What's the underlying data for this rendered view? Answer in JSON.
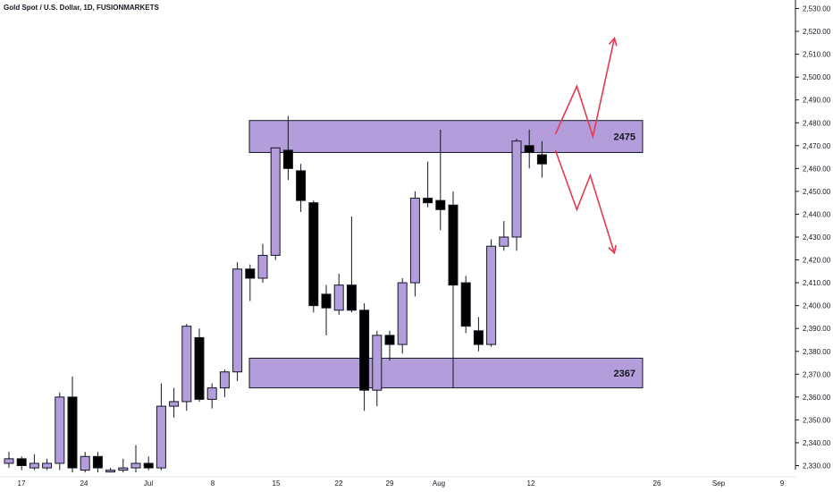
{
  "chart_data": {
    "type": "candlestick",
    "title": "Gold Spot / U.S. Dollar, 1D, FUSIONMARKETS",
    "y_range": [
      2327,
      2531
    ],
    "y_ticks": [
      "2,330.00",
      "2,340.00",
      "2,350.00",
      "2,360.00",
      "2,370.00",
      "2,380.00",
      "2,390.00",
      "2,400.00",
      "2,410.00",
      "2,420.00",
      "2,430.00",
      "2,440.00",
      "2,450.00",
      "2,460.00",
      "2,470.00",
      "2,480.00",
      "2,490.00",
      "2,500.00",
      "2,510.00",
      "2,520.00",
      "2,530.00"
    ],
    "x_ticks": [
      "17",
      "24",
      "Jul",
      "8",
      "15",
      "22",
      "29",
      "Aug",
      "12",
      "26",
      "Sep",
      "9"
    ],
    "colors": {
      "bull": "#b39ddb",
      "bear": "#000000",
      "zone": "#b39ddb",
      "arrow": "#e8384f"
    },
    "candles": [
      {
        "d": "Jun 17",
        "o": 2331,
        "h": 2336,
        "l": 2329,
        "c": 2333
      },
      {
        "d": "Jun 18",
        "o": 2333,
        "h": 2334,
        "l": 2328,
        "c": 2330
      },
      {
        "d": "Jun 19",
        "o": 2329,
        "h": 2335,
        "l": 2328,
        "c": 2331
      },
      {
        "d": "Jun 20",
        "o": 2329,
        "h": 2333,
        "l": 2328,
        "c": 2331
      },
      {
        "d": "Jun 21",
        "o": 2331,
        "h": 2362,
        "l": 2328,
        "c": 2360
      },
      {
        "d": "Jun 24",
        "o": 2360,
        "h": 2369,
        "l": 2327,
        "c": 2329
      },
      {
        "d": "Jun 25",
        "o": 2328,
        "h": 2336,
        "l": 2327,
        "c": 2334
      },
      {
        "d": "Jun 26",
        "o": 2334,
        "h": 2336,
        "l": 2327,
        "c": 2329
      },
      {
        "d": "Jun 27",
        "o": 2328,
        "h": 2329,
        "l": 2327,
        "c": 2328
      },
      {
        "d": "Jun 28",
        "o": 2328,
        "h": 2333,
        "l": 2327,
        "c": 2329
      },
      {
        "d": "Jul 1",
        "o": 2329,
        "h": 2339,
        "l": 2327,
        "c": 2331
      },
      {
        "d": "Jul 2",
        "o": 2331,
        "h": 2334,
        "l": 2328,
        "c": 2329
      },
      {
        "d": "Jul 3",
        "o": 2329,
        "h": 2366,
        "l": 2328,
        "c": 2356
      },
      {
        "d": "Jul 4",
        "o": 2356,
        "h": 2364,
        "l": 2351,
        "c": 2358
      },
      {
        "d": "Jul 5",
        "o": 2358,
        "h": 2392,
        "l": 2354,
        "c": 2391
      },
      {
        "d": "Jul 8",
        "o": 2386,
        "h": 2390,
        "l": 2358,
        "c": 2359
      },
      {
        "d": "Jul 9",
        "o": 2359,
        "h": 2366,
        "l": 2355,
        "c": 2364
      },
      {
        "d": "Jul 10",
        "o": 2364,
        "h": 2372,
        "l": 2360,
        "c": 2371
      },
      {
        "d": "Jul 11",
        "o": 2371,
        "h": 2419,
        "l": 2367,
        "c": 2416
      },
      {
        "d": "Jul 12",
        "o": 2416,
        "h": 2418,
        "l": 2402,
        "c": 2412
      },
      {
        "d": "Jul 15",
        "o": 2412,
        "h": 2427,
        "l": 2410,
        "c": 2422
      },
      {
        "d": "Jul 16",
        "o": 2422,
        "h": 2469,
        "l": 2420,
        "c": 2469
      },
      {
        "d": "Jul 17",
        "o": 2468,
        "h": 2483,
        "l": 2455,
        "c": 2460
      },
      {
        "d": "Jul 18",
        "o": 2459,
        "h": 2462,
        "l": 2441,
        "c": 2446
      },
      {
        "d": "Jul 19",
        "o": 2445,
        "h": 2446,
        "l": 2397,
        "c": 2400
      },
      {
        "d": "Jul 22",
        "o": 2405,
        "h": 2409,
        "l": 2387,
        "c": 2399
      },
      {
        "d": "Jul 23",
        "o": 2398,
        "h": 2414,
        "l": 2396,
        "c": 2409
      },
      {
        "d": "Jul 24",
        "o": 2409,
        "h": 2439,
        "l": 2397,
        "c": 2398
      },
      {
        "d": "Jul 25",
        "o": 2398,
        "h": 2401,
        "l": 2354,
        "c": 2363
      },
      {
        "d": "Jul 26",
        "o": 2363,
        "h": 2389,
        "l": 2356,
        "c": 2387
      },
      {
        "d": "Jul 29",
        "o": 2387,
        "h": 2389,
        "l": 2376,
        "c": 2383
      },
      {
        "d": "Jul 30",
        "o": 2383,
        "h": 2412,
        "l": 2379,
        "c": 2410
      },
      {
        "d": "Jul 31",
        "o": 2410,
        "h": 2450,
        "l": 2404,
        "c": 2447
      },
      {
        "d": "Aug 1",
        "o": 2447,
        "h": 2463,
        "l": 2443,
        "c": 2445
      },
      {
        "d": "Aug 2",
        "o": 2446,
        "h": 2477,
        "l": 2433,
        "c": 2442
      },
      {
        "d": "Aug 5",
        "o": 2444,
        "h": 2450,
        "l": 2364,
        "c": 2409
      },
      {
        "d": "Aug 6",
        "o": 2410,
        "h": 2413,
        "l": 2388,
        "c": 2391
      },
      {
        "d": "Aug 7",
        "o": 2389,
        "h": 2395,
        "l": 2380,
        "c": 2383
      },
      {
        "d": "Aug 8",
        "o": 2383,
        "h": 2429,
        "l": 2382,
        "c": 2426
      },
      {
        "d": "Aug 9",
        "o": 2426,
        "h": 2437,
        "l": 2424,
        "c": 2430
      },
      {
        "d": "Aug 12",
        "o": 2430,
        "h": 2473,
        "l": 2424,
        "c": 2472
      },
      {
        "d": "Aug 13",
        "o": 2470,
        "h": 2477,
        "l": 2460,
        "c": 2467
      },
      {
        "d": "Aug 14",
        "o": 2466,
        "h": 2472,
        "l": 2456,
        "c": 2462
      }
    ],
    "zones": [
      {
        "label": "2475",
        "top": 2481,
        "bottom": 2467
      },
      {
        "label": "2367",
        "top": 2377,
        "bottom": 2364
      }
    ],
    "projections": [
      {
        "name": "up-path",
        "points": [
          [
            2475,
            0
          ],
          [
            2496,
            0.8
          ],
          [
            2474,
            1.4
          ],
          [
            2517,
            2.2
          ]
        ]
      },
      {
        "name": "down-path",
        "points": [
          [
            2468,
            0
          ],
          [
            2442,
            0.8
          ],
          [
            2457,
            1.3
          ],
          [
            2423,
            2.2
          ]
        ]
      }
    ]
  }
}
